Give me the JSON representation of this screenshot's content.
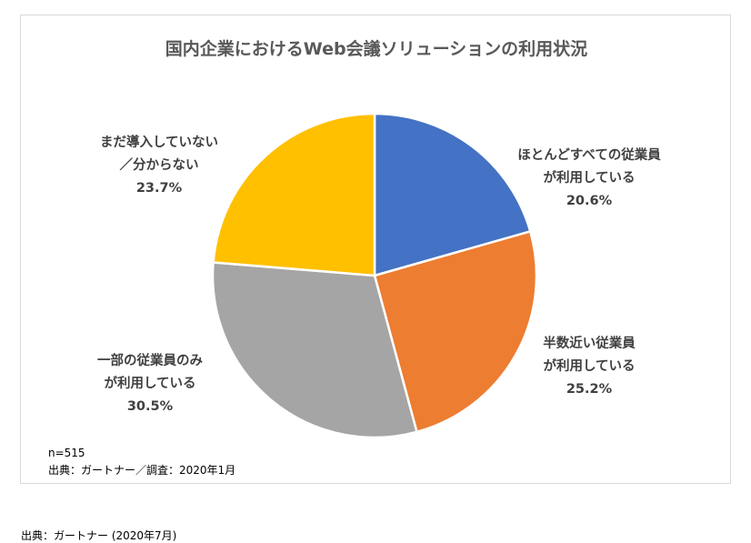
{
  "chart_data": {
    "type": "pie",
    "title": "国内企業におけるWeb会議ソリューションの利用状況",
    "start_angle_deg": 0,
    "direction": "clockwise",
    "slices": [
      {
        "label_lines": [
          "ほとんどすべての従業員",
          "が利用している"
        ],
        "value": 20.6,
        "value_label": "20.6%",
        "color": "#4472c4"
      },
      {
        "label_lines": [
          "半数近い従業員",
          "が利用している"
        ],
        "value": 25.2,
        "value_label": "25.2%",
        "color": "#ed7d31"
      },
      {
        "label_lines": [
          "一部の従業員のみ",
          "が利用している"
        ],
        "value": 30.5,
        "value_label": "30.5%",
        "color": "#a5a5a5"
      },
      {
        "label_lines": [
          "まだ導入していない",
          "／分からない"
        ],
        "value": 23.7,
        "value_label": "23.7%",
        "color": "#ffc000"
      }
    ]
  },
  "notes": {
    "sample": "n=515",
    "source": "出典：ガートナー／調査：2020年1月"
  },
  "caption": "出典：ガートナー (2020年7月)"
}
